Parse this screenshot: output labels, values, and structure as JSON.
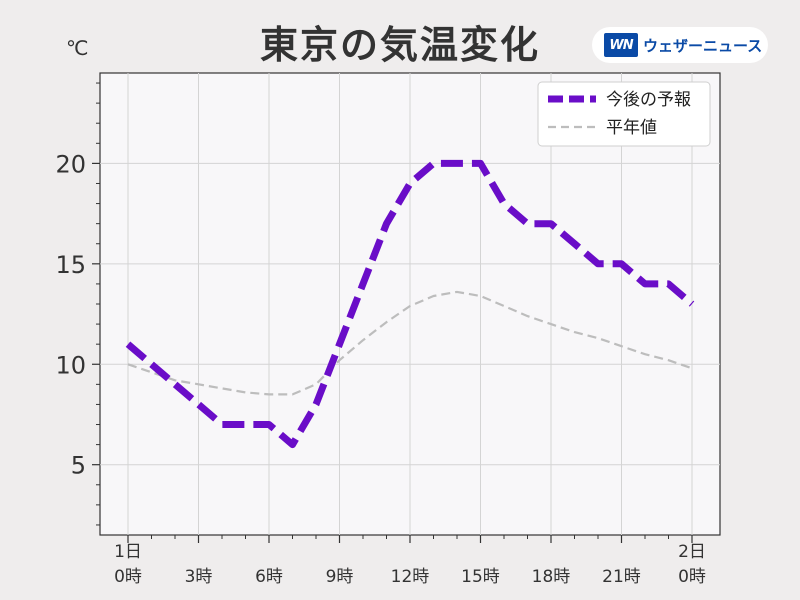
{
  "title": "東京の気温変化",
  "unit": "℃",
  "brand": {
    "logo": "WN",
    "name": "ウェザーニュース"
  },
  "chart_data": {
    "type": "line",
    "title": "東京の気温変化",
    "ylabel": "℃",
    "ylim": [
      1.5,
      24.5
    ],
    "yticks": [
      5,
      10,
      15,
      20
    ],
    "grid": true,
    "legend_position": "top-right",
    "x": [
      "1日0時",
      "1時",
      "2時",
      "3時",
      "4時",
      "5時",
      "6時",
      "7時",
      "8時",
      "9時",
      "10時",
      "11時",
      "12時",
      "13時",
      "14時",
      "15時",
      "16時",
      "17時",
      "18時",
      "19時",
      "20時",
      "21時",
      "22時",
      "23時",
      "2日0時"
    ],
    "x_tick_labels": [
      {
        "index": 0,
        "lines": [
          "1日",
          "0時"
        ]
      },
      {
        "index": 3,
        "lines": [
          "3時"
        ]
      },
      {
        "index": 6,
        "lines": [
          "6時"
        ]
      },
      {
        "index": 9,
        "lines": [
          "9時"
        ]
      },
      {
        "index": 12,
        "lines": [
          "12時"
        ]
      },
      {
        "index": 15,
        "lines": [
          "15時"
        ]
      },
      {
        "index": 18,
        "lines": [
          "18時"
        ]
      },
      {
        "index": 21,
        "lines": [
          "21時"
        ]
      },
      {
        "index": 24,
        "lines": [
          "2日",
          "0時"
        ]
      }
    ],
    "series": [
      {
        "name": "今後の予報",
        "color": "#6a0dc8",
        "style": "thick-dashed",
        "values": [
          11,
          10,
          9,
          8,
          7,
          7,
          7,
          6,
          8,
          11,
          14,
          17,
          19,
          20,
          20,
          20,
          18,
          17,
          17,
          16,
          15,
          15,
          14,
          14,
          13
        ]
      },
      {
        "name": "平年値",
        "color": "#bdbdbd",
        "style": "thin-dashed",
        "values": [
          10,
          9.6,
          9.2,
          9.0,
          8.8,
          8.6,
          8.5,
          8.5,
          9.0,
          10.2,
          11.2,
          12.1,
          12.9,
          13.4,
          13.6,
          13.4,
          12.9,
          12.4,
          12.0,
          11.6,
          11.3,
          10.9,
          10.5,
          10.2,
          9.8
        ]
      }
    ]
  }
}
